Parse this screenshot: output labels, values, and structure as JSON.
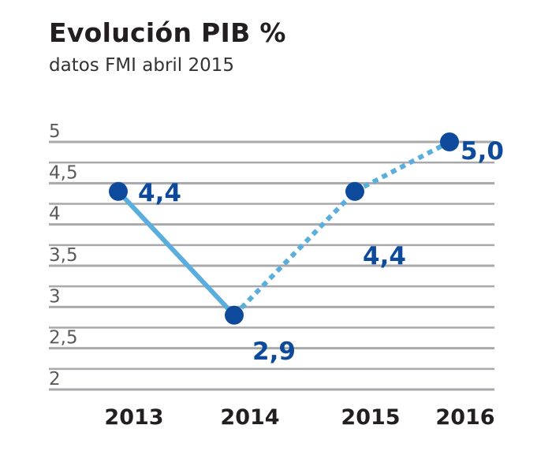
{
  "chart_data": {
    "type": "line",
    "title": "Evolución PIB %",
    "subtitle": "datos FMI abril 2015",
    "categories": [
      "2013",
      "2014",
      "2015",
      "2016"
    ],
    "values": [
      4.4,
      2.9,
      4.4,
      5.0
    ],
    "data_labels": [
      "4,4",
      "2,9",
      "4,4",
      "5,0"
    ],
    "yticks": [
      {
        "value": 5,
        "label": "5"
      },
      {
        "value": 4.5,
        "label": "4,5"
      },
      {
        "value": 4,
        "label": "4"
      },
      {
        "value": 3.5,
        "label": "3,5"
      },
      {
        "value": 3,
        "label": "3"
      },
      {
        "value": 2.5,
        "label": "2,5"
      },
      {
        "value": 2,
        "label": "2"
      }
    ],
    "ylim": [
      2,
      5
    ],
    "grid": true,
    "solid_segment_points": [
      0,
      1
    ],
    "dotted_segment_points": [
      1,
      2,
      3
    ],
    "colors": {
      "line": "#5aaede",
      "marker": "#0d4a9c",
      "grid": "#a7a9ac",
      "label": "#0d4a9c"
    }
  }
}
